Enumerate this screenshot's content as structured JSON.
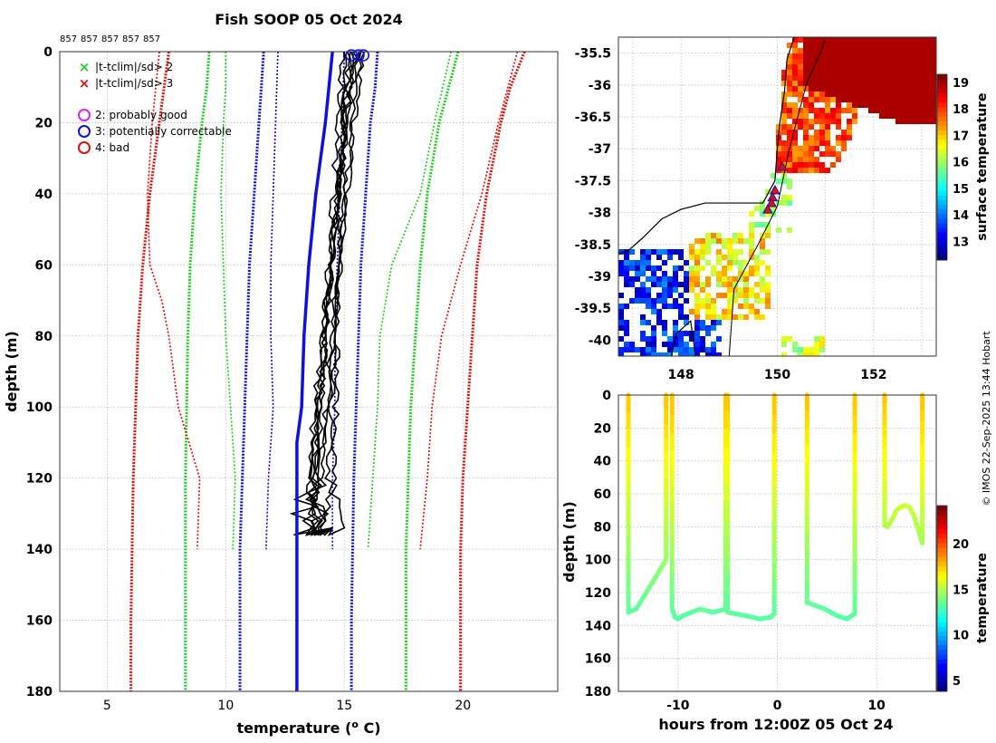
{
  "chart_data": [
    {
      "type": "line",
      "title": "Fish SOOP 05 Oct 2024",
      "platform_labels": [
        "857",
        "857",
        "857",
        "857",
        "857"
      ],
      "xlabel": "temperature (o C)",
      "ylabel": "depth (m)",
      "xlim": [
        3,
        24
      ],
      "ylim": [
        180,
        0
      ],
      "xticks": [
        "5",
        "10",
        "15",
        "20"
      ],
      "yticks": [
        "0",
        "20",
        "40",
        "60",
        "80",
        "100",
        "120",
        "140",
        "160",
        "180"
      ],
      "legend": {
        "location": "top-left",
        "markers": [
          {
            "label": "|t-tclim|/sd> 2",
            "color": "#22cc22"
          },
          {
            "label": "|t-tclim|/sd> 3",
            "color": "#dd1111"
          }
        ],
        "flags": [
          {
            "label": "2: probably good",
            "color": "#dd22dd"
          },
          {
            "label": "3: potentially correctable",
            "color": "#1111dd"
          },
          {
            "label": "4: bad",
            "color": "#dd1111"
          }
        ]
      },
      "flag_circles_x": [
        15.3,
        15.6,
        15.8
      ],
      "climatology": [
        {
          "name": "-3 sd",
          "color": "#dd1111",
          "bold": true,
          "depth": [
            0,
            10,
            20,
            40,
            60,
            80,
            100,
            120,
            140,
            160,
            180
          ],
          "values": [
            7.6,
            7.4,
            7.2,
            6.8,
            6.5,
            6.3,
            6.2,
            6.1,
            6.05,
            6.0,
            6.0
          ]
        },
        {
          "name": "-2 sd",
          "color": "#22cc22",
          "bold": true,
          "depth": [
            0,
            10,
            20,
            40,
            60,
            80,
            100,
            120,
            140,
            160,
            180
          ],
          "values": [
            9.3,
            9.2,
            9.0,
            8.7,
            8.5,
            8.4,
            8.35,
            8.3,
            8.3,
            8.3,
            8.3
          ]
        },
        {
          "name": "-1 sd",
          "color": "#1111dd",
          "bold": true,
          "depth": [
            0,
            10,
            20,
            40,
            60,
            80,
            100,
            120,
            140,
            160,
            180
          ],
          "values": [
            11.6,
            11.5,
            11.4,
            11.2,
            11.0,
            10.9,
            10.8,
            10.7,
            10.6,
            10.6,
            10.6
          ]
        },
        {
          "name": "+1 sd",
          "color": "#1111dd",
          "bold": true,
          "depth": [
            0,
            10,
            20,
            40,
            60,
            80,
            100,
            120,
            140,
            160,
            180
          ],
          "values": [
            16.4,
            16.3,
            16.1,
            15.9,
            15.7,
            15.6,
            15.5,
            15.4,
            15.35,
            15.3,
            15.3
          ]
        },
        {
          "name": "+2 sd",
          "color": "#22cc22",
          "bold": true,
          "depth": [
            0,
            10,
            20,
            40,
            60,
            80,
            100,
            120,
            140,
            160,
            180
          ],
          "values": [
            19.8,
            19.4,
            19.0,
            18.5,
            18.2,
            18.0,
            17.8,
            17.7,
            17.6,
            17.6,
            17.6
          ]
        },
        {
          "name": "+3 sd",
          "color": "#dd1111",
          "bold": true,
          "depth": [
            0,
            10,
            20,
            40,
            60,
            80,
            100,
            120,
            140,
            160,
            180
          ],
          "values": [
            22.6,
            22.0,
            21.6,
            21.0,
            20.6,
            20.4,
            20.2,
            20.0,
            19.9,
            19.9,
            19.9
          ]
        },
        {
          "name": "local -3 sd",
          "color": "#dd1111",
          "bold": false,
          "depth": [
            0,
            20,
            40,
            60,
            70,
            80,
            100,
            120,
            140
          ],
          "values": [
            7.2,
            6.9,
            6.7,
            6.8,
            7.3,
            7.6,
            8.0,
            8.9,
            8.8
          ]
        },
        {
          "name": "local -2 sd",
          "color": "#22cc22",
          "bold": false,
          "depth": [
            0,
            10,
            20,
            40,
            60,
            80,
            100,
            120,
            140
          ],
          "values": [
            10.0,
            10.0,
            9.9,
            9.8,
            9.9,
            10.0,
            10.2,
            10.4,
            10.3
          ]
        },
        {
          "name": "local -1 sd",
          "color": "#1111dd",
          "bold": false,
          "depth": [
            0,
            20,
            40,
            60,
            80,
            100,
            120,
            140
          ],
          "values": [
            12.2,
            12.1,
            12.0,
            11.9,
            11.9,
            12.0,
            11.8,
            11.7
          ]
        },
        {
          "name": "local +1 sd",
          "color": "#1111dd",
          "bold": false,
          "depth": [
            0,
            20,
            40,
            60,
            80,
            100,
            120,
            140
          ],
          "values": [
            15.0,
            14.9,
            14.8,
            14.7,
            14.6,
            14.6,
            14.5,
            14.5
          ]
        },
        {
          "name": "local +2 sd",
          "color": "#22cc22",
          "bold": false,
          "depth": [
            0,
            20,
            40,
            60,
            80,
            100,
            120,
            140
          ],
          "values": [
            19.5,
            18.8,
            18.2,
            17.0,
            16.5,
            16.4,
            16.2,
            16.0
          ]
        },
        {
          "name": "local +3 sd",
          "color": "#dd1111",
          "bold": false,
          "depth": [
            0,
            20,
            40,
            60,
            80,
            100,
            120,
            140
          ],
          "values": [
            22.3,
            21.5,
            20.8,
            19.9,
            19.1,
            18.7,
            18.5,
            18.2
          ]
        }
      ],
      "profiles_x0": [
        15.5,
        15.3,
        15.7,
        15.2,
        15.6,
        15.1,
        15.8,
        15.4,
        15.0
      ],
      "profiles_xbottom": [
        13.4,
        13.6,
        13.8,
        14.2,
        13.2,
        14.5,
        13.9,
        13.5,
        13.7
      ],
      "profile_max_depth": 136,
      "series": [
        {
          "name": "flagged profile",
          "color": "#1111dd",
          "depth": [
            0,
            20,
            40,
            60,
            80,
            100,
            110,
            120,
            140,
            160,
            180
          ],
          "values": [
            14.5,
            14.2,
            13.8,
            13.5,
            13.3,
            13.2,
            13.0,
            13.0,
            13.0,
            13.0,
            13.0
          ]
        }
      ]
    },
    {
      "type": "heatmap",
      "xlim": [
        146.7,
        153.3
      ],
      "ylim": [
        -40.25,
        -35.25
      ],
      "xticks": [
        "148",
        "150",
        "152"
      ],
      "yticks": [
        "-35.5",
        "-36",
        "-36.5",
        "-37",
        "-37.5",
        "-38",
        "-38.5",
        "-39",
        "-39.5",
        "-40"
      ],
      "colorbar": {
        "label": "surface temperature",
        "range": [
          12.3,
          19.3
        ],
        "ticks": [
          "13",
          "14",
          "15",
          "16",
          "17",
          "18",
          "19"
        ]
      },
      "stations": [
        {
          "lon": 150.1,
          "lat": -37.28
        },
        {
          "lon": 149.95,
          "lat": -37.65
        },
        {
          "lon": 149.9,
          "lat": -37.76
        },
        {
          "lon": 149.88,
          "lat": -37.85
        },
        {
          "lon": 149.8,
          "lat": -37.95
        }
      ]
    },
    {
      "type": "scatter",
      "xlabel": "hours from 12:00Z 05 Oct 24",
      "ylabel": "depth (m)",
      "xlim": [
        -16,
        16
      ],
      "ylim": [
        180,
        0
      ],
      "xticks": [
        "-10",
        "0",
        "10"
      ],
      "yticks": [
        "0",
        "20",
        "40",
        "60",
        "80",
        "100",
        "120",
        "140",
        "160",
        "180"
      ],
      "colorbar": {
        "label": "temperature",
        "range": [
          3.8,
          24.2
        ],
        "ticks": [
          "5",
          "10",
          "15",
          "20"
        ]
      },
      "tracks": [
        {
          "x": [
            -15.0,
            -15.0,
            -14.2,
            -13.0,
            -12.0,
            -11.2,
            -11.2
          ],
          "y": [
            0,
            132,
            130,
            118,
            108,
            100,
            0
          ]
        },
        {
          "x": [
            -5.2,
            -5.2,
            -6.5,
            -7.8,
            -9.5,
            -10.0,
            -10.3,
            -10.6,
            -10.6
          ],
          "y": [
            0,
            130,
            132,
            130,
            134,
            136,
            135,
            130,
            0
          ]
        },
        {
          "x": [
            -5.0,
            -5.0,
            -3.2,
            -1.8,
            -0.7,
            -0.3,
            -0.3
          ],
          "y": [
            0,
            132,
            134,
            136,
            135,
            133,
            0
          ]
        },
        {
          "x": [
            3.0,
            3.0,
            4.8,
            6.0,
            7.0,
            7.8,
            7.8
          ],
          "y": [
            0,
            126,
            130,
            134,
            136,
            133,
            0
          ]
        },
        {
          "x": [
            10.8,
            10.8,
            11.1,
            11.6,
            12.0,
            12.4,
            12.9,
            13.3,
            13.8,
            14.1,
            14.4,
            14.6,
            14.6
          ],
          "y": [
            0,
            79,
            80,
            75,
            70,
            68,
            67,
            68,
            74,
            80,
            86,
            90,
            0
          ]
        }
      ]
    }
  ],
  "timestamp": "© IMOS 22-Sep-2025 13:44 Hobart"
}
